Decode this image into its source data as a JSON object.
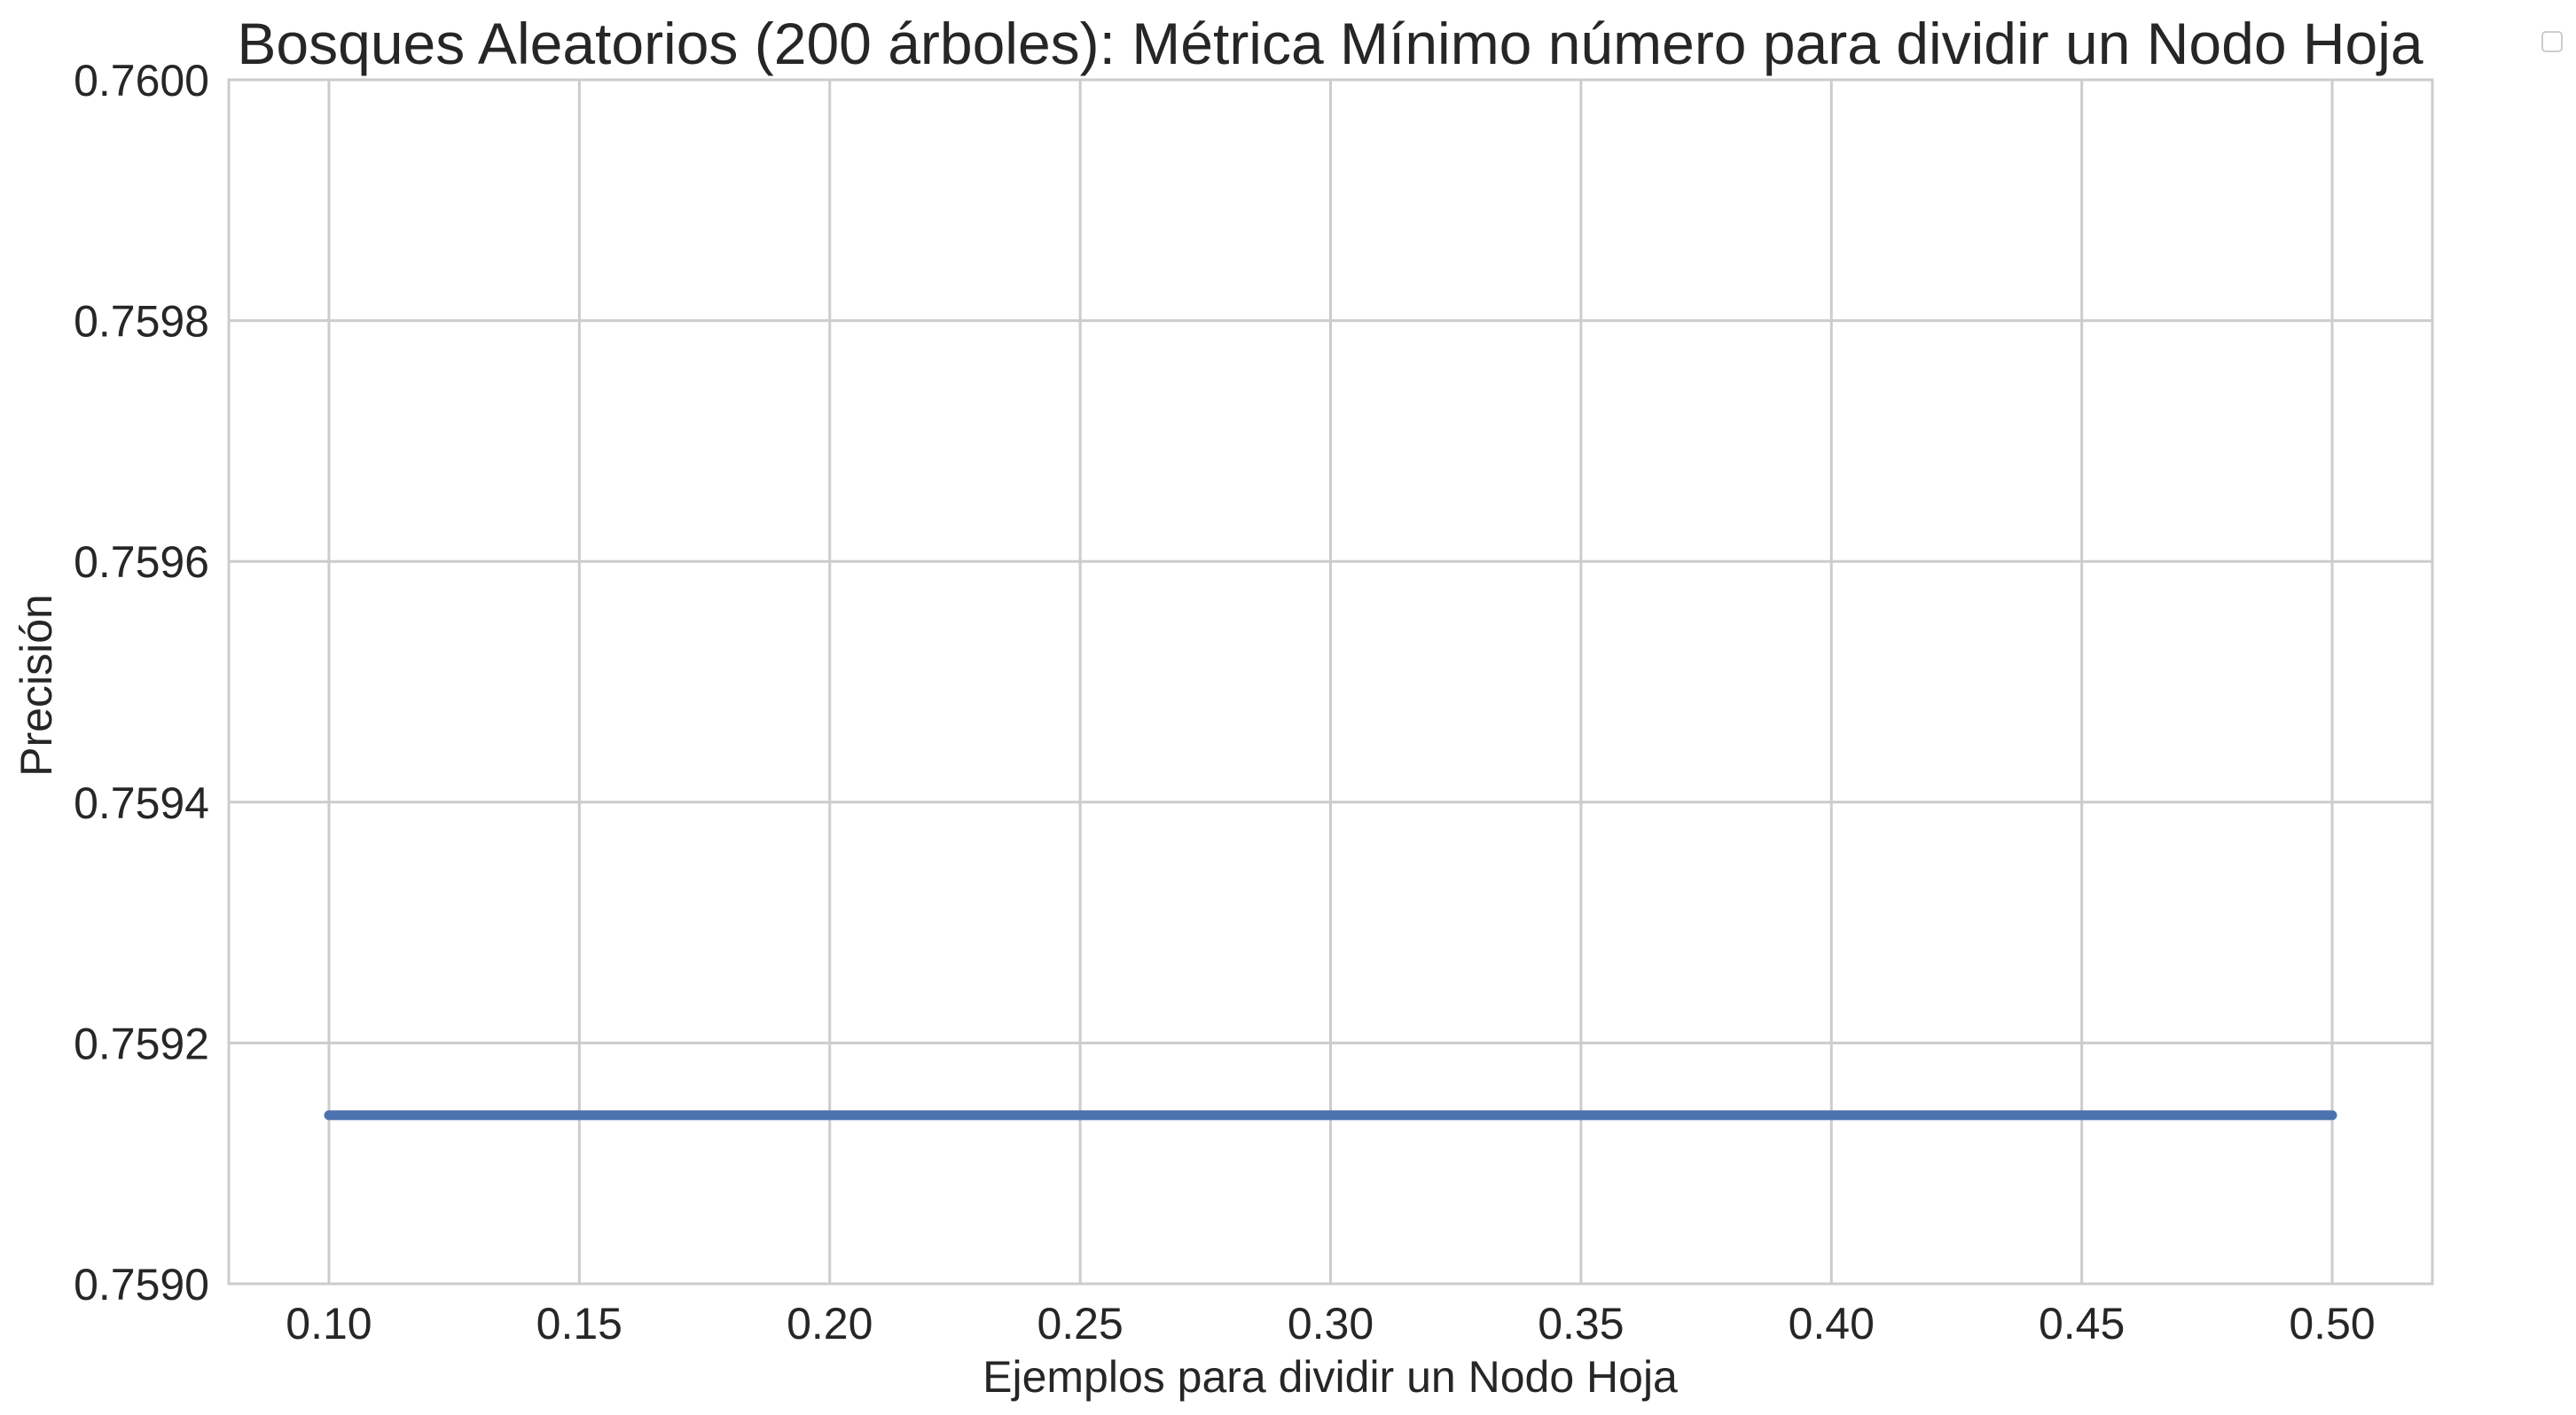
{
  "chart_data": {
    "type": "line",
    "title": "Bosques Aleatorios (200 árboles): Métrica Mínimo número para dividir un Nodo Hoja",
    "xlabel": "Ejemplos para dividir un Nodo Hoja",
    "ylabel": "Precisión",
    "xlim": [
      0.08,
      0.52
    ],
    "ylim": [
      0.759,
      0.76
    ],
    "xticks": [
      0.1,
      0.15,
      0.2,
      0.25,
      0.3,
      0.35,
      0.4,
      0.45,
      0.5
    ],
    "xtick_labels": [
      "0.10",
      "0.15",
      "0.20",
      "0.25",
      "0.30",
      "0.35",
      "0.40",
      "0.45",
      "0.50"
    ],
    "yticks": [
      0.759,
      0.7592,
      0.7594,
      0.7596,
      0.7598,
      0.76
    ],
    "ytick_labels": [
      "0.7590",
      "0.7592",
      "0.7594",
      "0.7596",
      "0.7598",
      "0.7600"
    ],
    "grid": true,
    "legend": "top-right (empty)",
    "series": [
      {
        "color": "#4c72b0",
        "x": [
          0.1,
          0.15,
          0.2,
          0.25,
          0.3,
          0.35,
          0.4,
          0.45,
          0.5
        ],
        "y": [
          0.75914,
          0.75914,
          0.75914,
          0.75914,
          0.75914,
          0.75914,
          0.75914,
          0.75914,
          0.75914
        ]
      }
    ]
  }
}
